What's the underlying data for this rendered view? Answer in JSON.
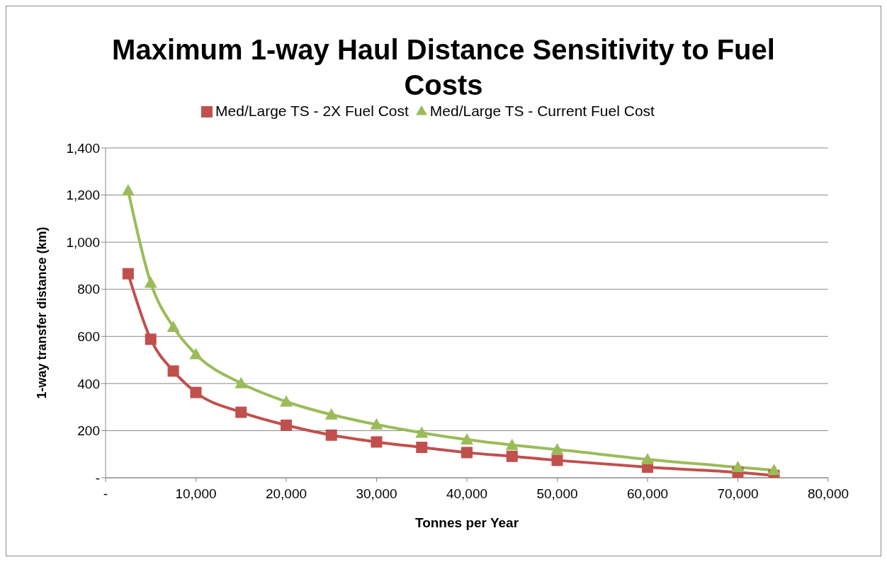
{
  "chart_data": {
    "type": "line",
    "title": "Maximum 1-way Haul Distance Sensitivity to Fuel Costs",
    "xlabel": "Tonnes per Year",
    "ylabel": "1-way transfer distance (km)",
    "x": [
      2500,
      5000,
      7500,
      10000,
      15000,
      20000,
      25000,
      30000,
      35000,
      40000,
      45000,
      50000,
      60000,
      70000,
      74000
    ],
    "series": [
      {
        "name": "Med/Large TS - 2X Fuel Cost",
        "color": "#c0504d",
        "marker": "square",
        "values": [
          866,
          588,
          453,
          362,
          278,
          223,
          181,
          152,
          129,
          107,
          91,
          74,
          45,
          23,
          10
        ]
      },
      {
        "name": "Med/Large TS - Current Fuel Cost",
        "color": "#9bbb59",
        "marker": "triangle",
        "values": [
          1219,
          828,
          640,
          524,
          401,
          323,
          268,
          226,
          191,
          162,
          139,
          120,
          78,
          45,
          32
        ]
      }
    ],
    "xlim": [
      0,
      80000
    ],
    "xticks": [
      {
        "value": 0,
        "label": "-"
      },
      {
        "value": 10000,
        "label": "10,000"
      },
      {
        "value": 20000,
        "label": "20,000"
      },
      {
        "value": 30000,
        "label": "30,000"
      },
      {
        "value": 40000,
        "label": "40,000"
      },
      {
        "value": 50000,
        "label": "50,000"
      },
      {
        "value": 60000,
        "label": "60,000"
      },
      {
        "value": 70000,
        "label": "70,000"
      },
      {
        "value": 80000,
        "label": "80,000"
      }
    ],
    "ylim": [
      0,
      1400
    ],
    "yticks": [
      {
        "value": 0,
        "label": "-"
      },
      {
        "value": 200,
        "label": "200"
      },
      {
        "value": 400,
        "label": "400"
      },
      {
        "value": 600,
        "label": "600"
      },
      {
        "value": 800,
        "label": "800"
      },
      {
        "value": 1000,
        "label": "1,000"
      },
      {
        "value": 1200,
        "label": "1,200"
      },
      {
        "value": 1400,
        "label": "1,400"
      }
    ],
    "grid": "y",
    "legend": "top",
    "line_style": "solid"
  }
}
